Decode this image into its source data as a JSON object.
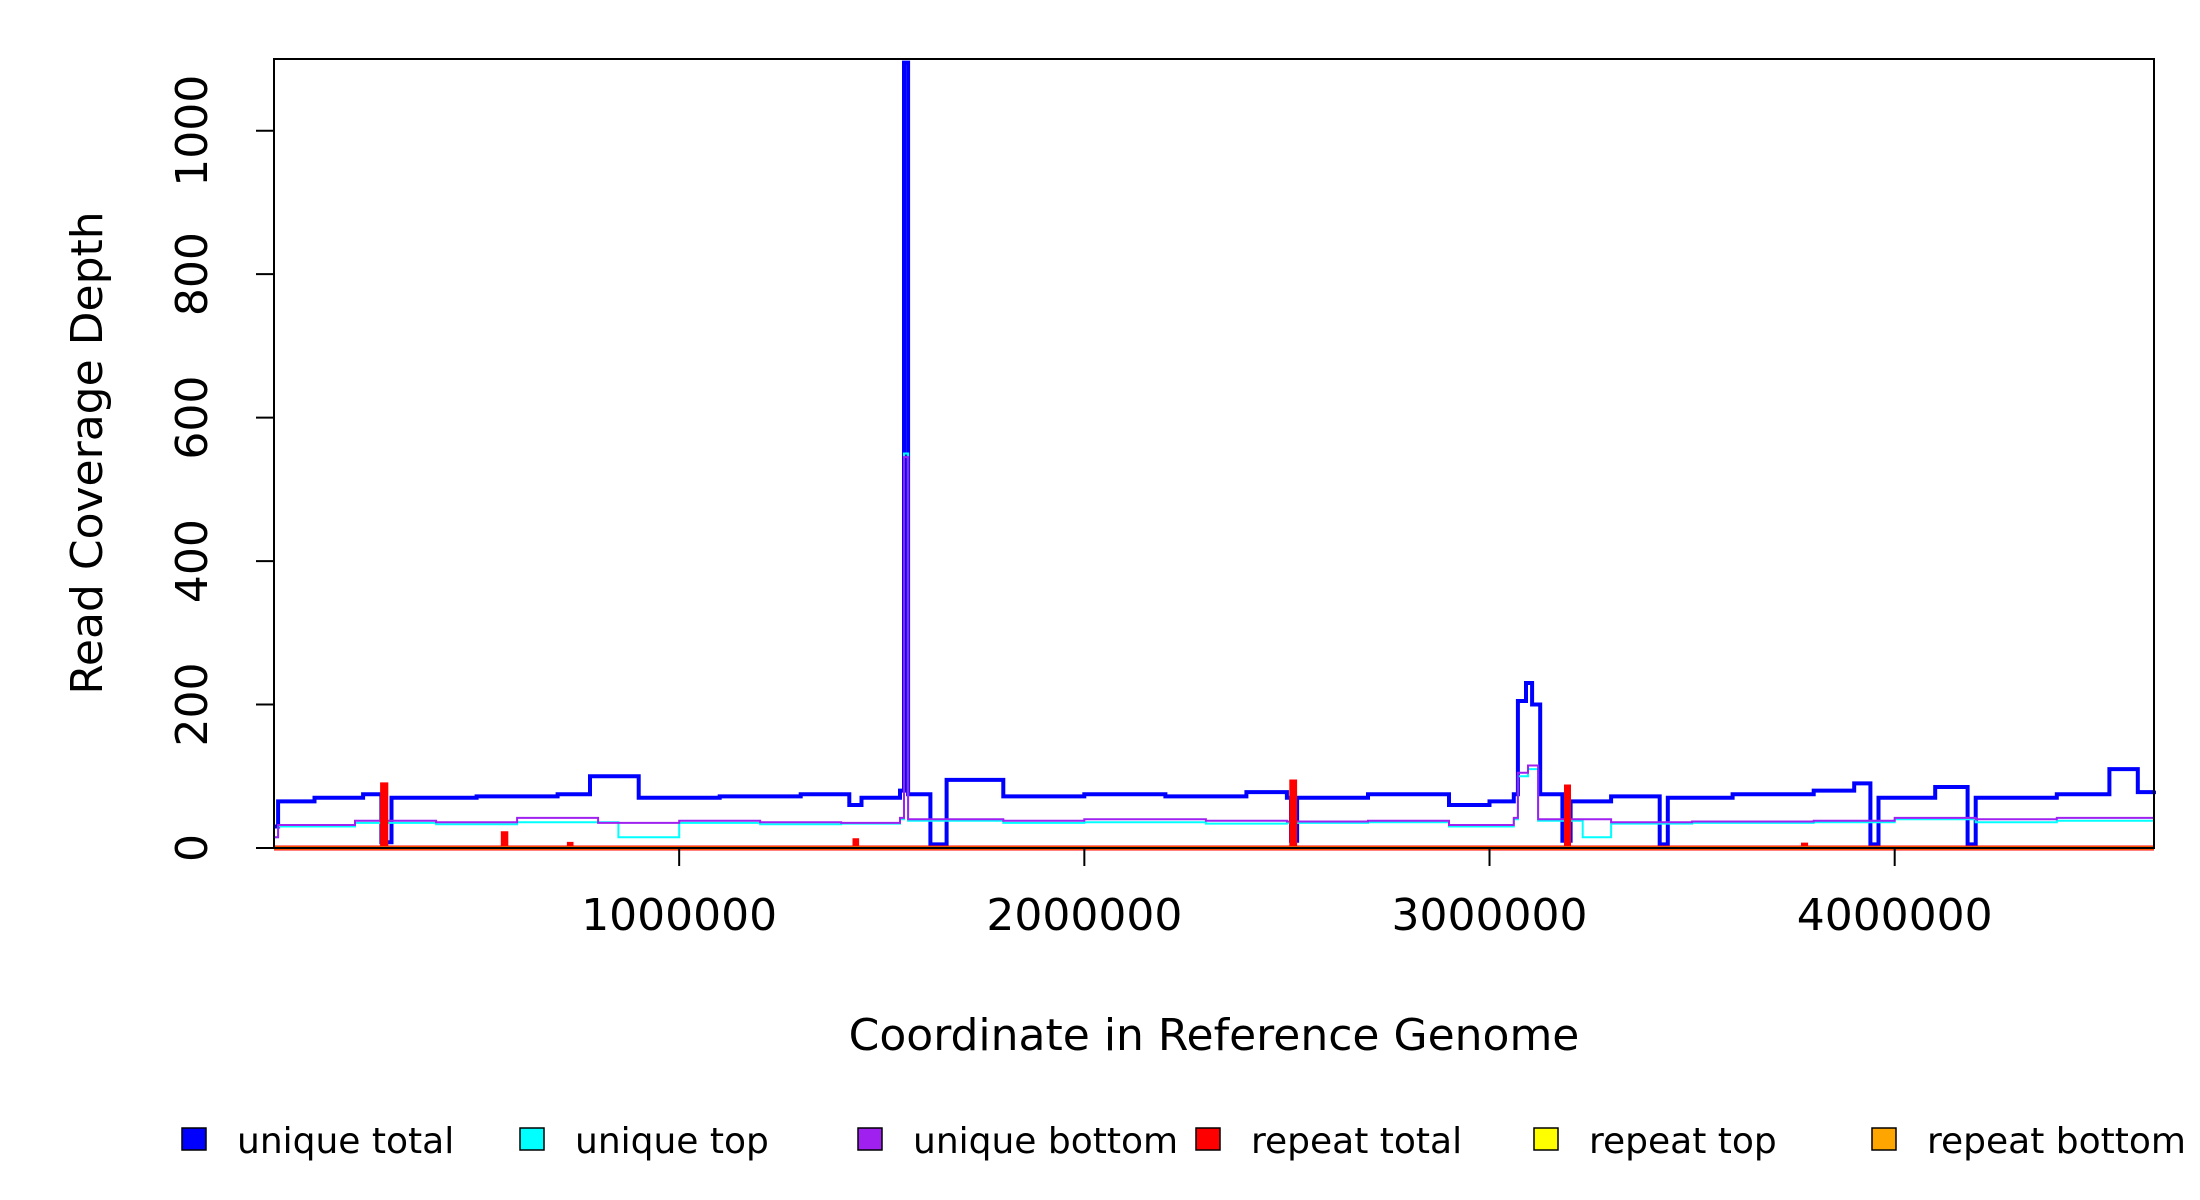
{
  "chart_data": {
    "type": "line",
    "title": "",
    "xlabel": "Coordinate in Reference Genome",
    "ylabel": "Read Coverage Depth",
    "xlim": [
      0,
      4640000
    ],
    "ylim": [
      0,
      1100
    ],
    "xticks": [
      1000000,
      2000000,
      3000000,
      4000000
    ],
    "yticks": [
      0,
      200,
      400,
      600,
      800,
      1000
    ],
    "grid": false,
    "legend_position": "bottom",
    "series": [
      {
        "name": "unique total",
        "color": "#0000FF",
        "points": [
          [
            0,
            30
          ],
          [
            10000,
            65
          ],
          [
            100000,
            70
          ],
          [
            220000,
            75
          ],
          [
            265000,
            8
          ],
          [
            290000,
            70
          ],
          [
            500000,
            72
          ],
          [
            700000,
            75
          ],
          [
            780000,
            100
          ],
          [
            900000,
            70
          ],
          [
            1100000,
            72
          ],
          [
            1300000,
            75
          ],
          [
            1420000,
            60
          ],
          [
            1450000,
            70
          ],
          [
            1545000,
            80
          ],
          [
            1555000,
            1095
          ],
          [
            1565000,
            75
          ],
          [
            1620000,
            5
          ],
          [
            1660000,
            95
          ],
          [
            1800000,
            72
          ],
          [
            2000000,
            75
          ],
          [
            2200000,
            72
          ],
          [
            2400000,
            78
          ],
          [
            2500000,
            70
          ],
          [
            2510000,
            10
          ],
          [
            2525000,
            70
          ],
          [
            2700000,
            75
          ],
          [
            2900000,
            60
          ],
          [
            3000000,
            65
          ],
          [
            3060000,
            75
          ],
          [
            3070000,
            205
          ],
          [
            3090000,
            230
          ],
          [
            3105000,
            200
          ],
          [
            3125000,
            75
          ],
          [
            3180000,
            10
          ],
          [
            3200000,
            65
          ],
          [
            3300000,
            72
          ],
          [
            3420000,
            5
          ],
          [
            3440000,
            70
          ],
          [
            3600000,
            75
          ],
          [
            3800000,
            80
          ],
          [
            3900000,
            90
          ],
          [
            3940000,
            5
          ],
          [
            3960000,
            70
          ],
          [
            4100000,
            85
          ],
          [
            4180000,
            5
          ],
          [
            4200000,
            70
          ],
          [
            4400000,
            75
          ],
          [
            4530000,
            110
          ],
          [
            4600000,
            78
          ],
          [
            4640000,
            80
          ]
        ]
      },
      {
        "name": "unique top",
        "color": "#00FFFF",
        "points": [
          [
            0,
            15
          ],
          [
            10000,
            30
          ],
          [
            200000,
            35
          ],
          [
            400000,
            33
          ],
          [
            600000,
            36
          ],
          [
            850000,
            15
          ],
          [
            1000000,
            35
          ],
          [
            1200000,
            33
          ],
          [
            1400000,
            34
          ],
          [
            1545000,
            40
          ],
          [
            1555000,
            550
          ],
          [
            1565000,
            38
          ],
          [
            1800000,
            35
          ],
          [
            2000000,
            36
          ],
          [
            2300000,
            34
          ],
          [
            2500000,
            35
          ],
          [
            2700000,
            36
          ],
          [
            2900000,
            30
          ],
          [
            3060000,
            40
          ],
          [
            3070000,
            100
          ],
          [
            3095000,
            110
          ],
          [
            3120000,
            38
          ],
          [
            3230000,
            15
          ],
          [
            3300000,
            34
          ],
          [
            3500000,
            35
          ],
          [
            3800000,
            36
          ],
          [
            4000000,
            40
          ],
          [
            4200000,
            36
          ],
          [
            4400000,
            38
          ],
          [
            4640000,
            40
          ]
        ]
      },
      {
        "name": "unique bottom",
        "color": "#A020F0",
        "points": [
          [
            0,
            15
          ],
          [
            10000,
            32
          ],
          [
            200000,
            38
          ],
          [
            400000,
            36
          ],
          [
            600000,
            42
          ],
          [
            800000,
            35
          ],
          [
            1000000,
            38
          ],
          [
            1200000,
            36
          ],
          [
            1400000,
            35
          ],
          [
            1545000,
            42
          ],
          [
            1555000,
            545
          ],
          [
            1565000,
            40
          ],
          [
            1800000,
            38
          ],
          [
            2000000,
            40
          ],
          [
            2300000,
            38
          ],
          [
            2500000,
            37
          ],
          [
            2700000,
            38
          ],
          [
            2900000,
            32
          ],
          [
            3060000,
            42
          ],
          [
            3070000,
            105
          ],
          [
            3095000,
            115
          ],
          [
            3120000,
            40
          ],
          [
            3300000,
            36
          ],
          [
            3500000,
            37
          ],
          [
            3800000,
            38
          ],
          [
            4000000,
            42
          ],
          [
            4200000,
            40
          ],
          [
            4400000,
            42
          ],
          [
            4640000,
            42
          ]
        ]
      },
      {
        "name": "repeat total",
        "color": "#FF0000",
        "points": [
          [
            0,
            0
          ],
          [
            260000,
            0
          ],
          [
            268000,
            88
          ],
          [
            276000,
            0
          ],
          [
            560000,
            0
          ],
          [
            566000,
            20
          ],
          [
            572000,
            0
          ],
          [
            725000,
            0
          ],
          [
            729000,
            5
          ],
          [
            733000,
            0
          ],
          [
            1430000,
            0
          ],
          [
            1434000,
            10
          ],
          [
            1438000,
            0
          ],
          [
            2505000,
            0
          ],
          [
            2512000,
            92
          ],
          [
            2519000,
            0
          ],
          [
            3185000,
            0
          ],
          [
            3190000,
            85
          ],
          [
            3195000,
            0
          ],
          [
            3770000,
            0
          ],
          [
            3775000,
            4
          ],
          [
            3780000,
            0
          ],
          [
            4640000,
            0
          ]
        ]
      },
      {
        "name": "repeat top",
        "color": "#FFFF00",
        "points": [
          [
            0,
            0
          ],
          [
            4640000,
            0
          ]
        ]
      },
      {
        "name": "repeat bottom",
        "color": "#FFA500",
        "points": [
          [
            0,
            0
          ],
          [
            4640000,
            0
          ]
        ]
      }
    ]
  }
}
